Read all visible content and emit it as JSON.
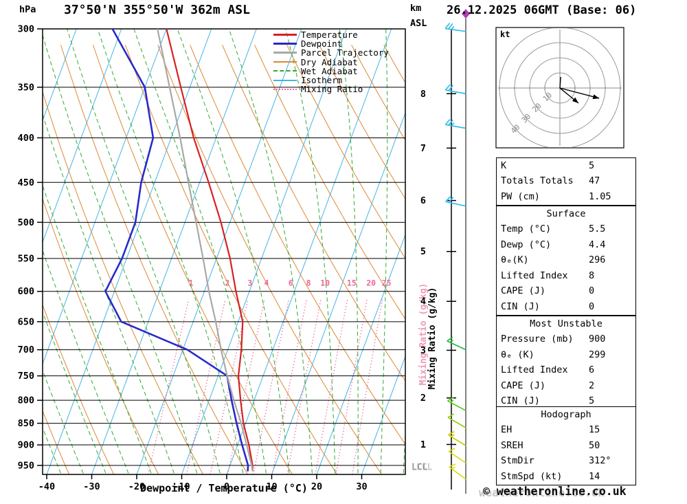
{
  "header": {
    "pressure_unit": "hPa",
    "title": "37°50'N 355°50'W 362m ASL",
    "km_label": "km",
    "asl_label": "ASL",
    "date_title": "26.12.2025 06GMT (Base: 06)"
  },
  "axes": {
    "pressure_ticks": [
      300,
      350,
      400,
      450,
      500,
      550,
      600,
      650,
      700,
      750,
      800,
      850,
      900,
      950
    ],
    "temp_ticks": [
      -40,
      -30,
      -20,
      -10,
      0,
      10,
      20,
      30
    ],
    "xlabel": "Dewpoint / Temperature (°C)",
    "mixing_ratio_axis_label": "Mixing Ratio (g/kg)",
    "lcl_label": "LCL",
    "km_ticks": [
      {
        "km": 8,
        "p": 356
      },
      {
        "km": 7,
        "p": 411
      },
      {
        "km": 6,
        "p": 472
      },
      {
        "km": 5,
        "p": 540
      },
      {
        "km": 4,
        "p": 616
      },
      {
        "km": 3,
        "p": 701
      },
      {
        "km": 2,
        "p": 795
      },
      {
        "km": 1,
        "p": 899
      }
    ]
  },
  "legend": [
    {
      "label": "Temperature",
      "color": "#d82020",
      "style": "solid",
      "width": 2.2
    },
    {
      "label": "Dewpoint",
      "color": "#2828cc",
      "style": "solid",
      "width": 2.6
    },
    {
      "label": "Parcel Trajectory",
      "color": "#a8a8a8",
      "style": "solid",
      "width": 2.2
    },
    {
      "label": "Dry Adiabat",
      "color": "#dd8833",
      "style": "solid",
      "width": 1
    },
    {
      "label": "Wet Adiabat",
      "color": "#30aa30",
      "style": "dashed",
      "width": 1
    },
    {
      "label": "Isotherm",
      "color": "#44b4e4",
      "style": "solid",
      "width": 1
    },
    {
      "label": "Mixing Ratio",
      "color": "#ee6699",
      "style": "dotted",
      "width": 1
    }
  ],
  "chart_data": {
    "type": "line",
    "chart_kind": "skew-T log-p sounding",
    "x_axis": {
      "label": "Dewpoint / Temperature (°C)",
      "range_c": [
        -42,
        40
      ],
      "ticks": [
        -40,
        -30,
        -20,
        -10,
        0,
        10,
        20,
        30
      ]
    },
    "y_axis": {
      "label": "hPa",
      "scale": "log",
      "range_hpa": [
        300,
        973
      ],
      "ticks": [
        300,
        350,
        400,
        450,
        500,
        550,
        600,
        650,
        700,
        750,
        800,
        850,
        900,
        950
      ]
    },
    "background": {
      "isotherms": {
        "color": "#44b4e4",
        "min": -100,
        "max": 40,
        "step": 10
      },
      "dry_adiabats": {
        "color": "#dd8833",
        "min_k": 230,
        "max_k": 420,
        "step_k": 10
      },
      "wet_adiabats": {
        "color": "#30aa30",
        "min_c": -40,
        "max_c": 40,
        "step_c": 5
      },
      "mixing_ratio": {
        "color": "#ee6699",
        "values": [
          1,
          2,
          3,
          4,
          6,
          8,
          10,
          15,
          20,
          25
        ],
        "top_p": 600
      }
    },
    "series": [
      {
        "name": "Temperature",
        "color": "#d82020",
        "width": 2.2,
        "points": [
          [
            965,
            5.5
          ],
          [
            950,
            5.0
          ],
          [
            900,
            2.5
          ],
          [
            850,
            -0.5
          ],
          [
            800,
            -3.0
          ],
          [
            750,
            -5.5
          ],
          [
            700,
            -7.0
          ],
          [
            650,
            -9.0
          ],
          [
            600,
            -13.0
          ],
          [
            550,
            -17.0
          ],
          [
            500,
            -22.0
          ],
          [
            450,
            -28.0
          ],
          [
            400,
            -35.0
          ],
          [
            350,
            -42.0
          ],
          [
            300,
            -50.0
          ]
        ]
      },
      {
        "name": "Dewpoint",
        "color": "#2828cc",
        "width": 2.6,
        "points": [
          [
            965,
            4.4
          ],
          [
            950,
            4.0
          ],
          [
            900,
            1.0
          ],
          [
            850,
            -2.0
          ],
          [
            800,
            -5.0
          ],
          [
            750,
            -8.0
          ],
          [
            700,
            -19.0
          ],
          [
            650,
            -36.0
          ],
          [
            600,
            -42.0
          ],
          [
            550,
            -41.0
          ],
          [
            500,
            -41.0
          ],
          [
            450,
            -43.0
          ],
          [
            400,
            -44.0
          ],
          [
            350,
            -50.0
          ],
          [
            300,
            -62.0
          ]
        ]
      },
      {
        "name": "Parcel Trajectory",
        "color": "#a8a8a8",
        "width": 2.2,
        "points": [
          [
            965,
            5.5
          ],
          [
            950,
            4.8
          ],
          [
            900,
            2.0
          ],
          [
            850,
            -1.0
          ],
          [
            800,
            -4.5
          ],
          [
            750,
            -8.0
          ],
          [
            700,
            -11.5
          ],
          [
            650,
            -15.0
          ],
          [
            600,
            -19.0
          ],
          [
            550,
            -23.0
          ],
          [
            500,
            -27.5
          ],
          [
            450,
            -32.5
          ],
          [
            400,
            -38.0
          ],
          [
            350,
            -44.5
          ],
          [
            300,
            -52.0
          ]
        ]
      }
    ]
  },
  "wind": {
    "marker_color": "#b03ab0",
    "barbs": [
      {
        "p": 302,
        "speed": 25,
        "angle": 8,
        "color": "#33bbee"
      },
      {
        "p": 356,
        "speed": 20,
        "angle": 10,
        "color": "#33bbee"
      },
      {
        "p": 390,
        "speed": 25,
        "angle": 10,
        "color": "#33bbee"
      },
      {
        "p": 479,
        "speed": 20,
        "angle": 12,
        "color": "#33bbee"
      },
      {
        "p": 700,
        "speed": 15,
        "angle": 25,
        "color": "#22bb44"
      },
      {
        "p": 822,
        "speed": 15,
        "angle": 28,
        "color": "#55cc22"
      },
      {
        "p": 860,
        "speed": 10,
        "angle": 30,
        "color": "#99cc11"
      },
      {
        "p": 902,
        "speed": 15,
        "angle": 32,
        "color": "#cccc00"
      },
      {
        "p": 944,
        "speed": 10,
        "angle": 34,
        "color": "#dddd11"
      },
      {
        "p": 985,
        "speed": 15,
        "angle": 36,
        "color": "#dddd11"
      }
    ]
  },
  "hodograph": {
    "unit_label": "kt",
    "rings_kt": [
      10,
      20,
      30,
      40
    ],
    "ring_labels": [
      "10",
      "20",
      "30",
      "40"
    ],
    "trace_uv": [
      [
        0.5,
        7.3
      ],
      [
        0,
        0
      ],
      [
        12.3,
        -10
      ]
    ],
    "vector2_uv": [
      [
        0,
        0
      ],
      [
        26,
        -6.8
      ]
    ]
  },
  "tables": {
    "indices": {
      "rows": [
        [
          "K",
          "5"
        ],
        [
          "Totals Totals",
          "47"
        ],
        [
          "PW (cm)",
          "1.05"
        ]
      ]
    },
    "surface": {
      "header": "Surface",
      "rows": [
        [
          "Temp (°C)",
          "5.5"
        ],
        [
          "Dewp (°C)",
          "4.4"
        ],
        [
          "θₑ(K)",
          "296"
        ],
        [
          "Lifted Index",
          "8"
        ],
        [
          "CAPE (J)",
          "0"
        ],
        [
          "CIN (J)",
          "0"
        ]
      ]
    },
    "most_unstable": {
      "header": "Most Unstable",
      "rows": [
        [
          "Pressure (mb)",
          "900"
        ],
        [
          "θₑ (K)",
          "299"
        ],
        [
          "Lifted Index",
          "6"
        ],
        [
          "CAPE (J)",
          "2"
        ],
        [
          "CIN (J)",
          "5"
        ]
      ]
    },
    "hodograph_table": {
      "header": "Hodograph",
      "rows": [
        [
          "EH",
          "15"
        ],
        [
          "SREH",
          "50"
        ],
        [
          "StmDir",
          "312°"
        ],
        [
          "StmSpd (kt)",
          "14"
        ]
      ]
    }
  },
  "footer": {
    "copyright": "© weatheronline.co.uk",
    "watermark": "weatheronline.co.uk"
  }
}
